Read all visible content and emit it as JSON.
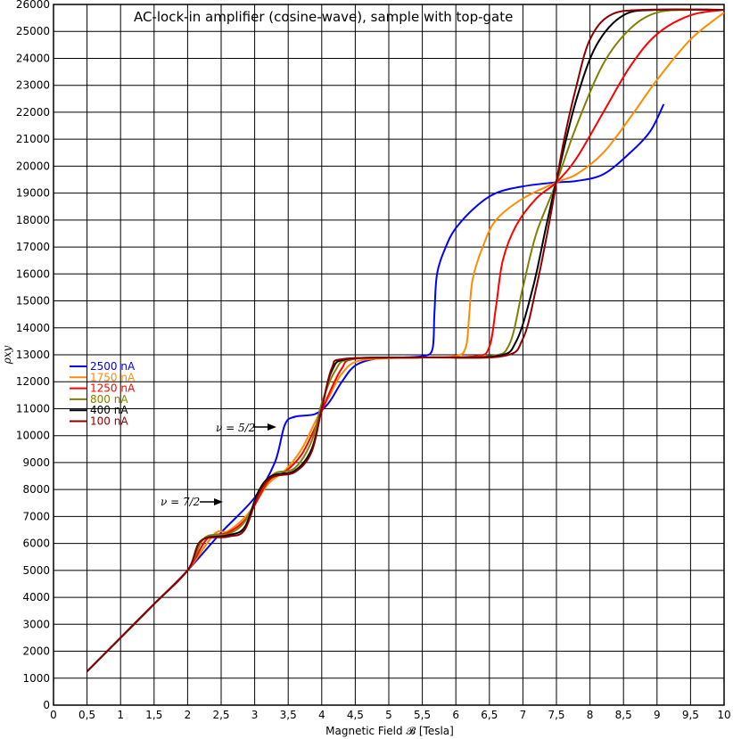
{
  "chart_data": {
    "type": "line",
    "title": "AC-lock-in amplifier (cosine-wave), sample with top-gate",
    "xlabel": "Magnetic Field 𝓑 [Tesla]",
    "ylabel": "ρxy",
    "xlim": [
      0,
      10
    ],
    "ylim": [
      0,
      26000
    ],
    "grid": true,
    "legend_position": "left",
    "x_tick_labels": [
      "0",
      "0,5",
      "1",
      "1,5",
      "2",
      "2,5",
      "3",
      "3,5",
      "4",
      "4,5",
      "5",
      "5,5",
      "6",
      "6,5",
      "7",
      "7,5",
      "8",
      "8,5",
      "9",
      "9,5",
      "10"
    ],
    "y_tick_labels": [
      "0",
      "1000",
      "2000",
      "3000",
      "4000",
      "5000",
      "6000",
      "7000",
      "8000",
      "9000",
      "10000",
      "11000",
      "12000",
      "13000",
      "14000",
      "15000",
      "16000",
      "17000",
      "18000",
      "19000",
      "20000",
      "21000",
      "22000",
      "23000",
      "24000",
      "25000",
      "26000"
    ],
    "annotations": [
      {
        "text": "ν = 5/2",
        "x": 3.1,
        "y": 10400
      },
      {
        "text": "ν = 7/2",
        "x": 2.2,
        "y": 7250
      }
    ],
    "series": [
      {
        "name": "2500 nA",
        "color": "#0000ff",
        "points": [
          [
            0.5,
            1250
          ],
          [
            1.0,
            2500
          ],
          [
            1.5,
            3750
          ],
          [
            2.0,
            5000
          ],
          [
            2.5,
            6400
          ],
          [
            3.0,
            7700
          ],
          [
            3.3,
            9000
          ],
          [
            3.45,
            10400
          ],
          [
            3.6,
            10700
          ],
          [
            3.9,
            10800
          ],
          [
            4.1,
            11200
          ],
          [
            4.3,
            12000
          ],
          [
            4.5,
            12600
          ],
          [
            4.8,
            12850
          ],
          [
            5.2,
            12900
          ],
          [
            5.5,
            12950
          ],
          [
            5.65,
            13200
          ],
          [
            5.68,
            14500
          ],
          [
            5.72,
            16000
          ],
          [
            5.85,
            17000
          ],
          [
            6.0,
            17700
          ],
          [
            6.3,
            18500
          ],
          [
            6.6,
            19000
          ],
          [
            7.0,
            19250
          ],
          [
            7.5,
            19400
          ],
          [
            7.8,
            19450
          ],
          [
            8.2,
            19700
          ],
          [
            8.6,
            20500
          ],
          [
            8.9,
            21300
          ],
          [
            9.1,
            22300
          ]
        ]
      },
      {
        "name": "1750 nA",
        "color": "#ff8c00",
        "points": [
          [
            0.5,
            1250
          ],
          [
            1.0,
            2500
          ],
          [
            1.5,
            3750
          ],
          [
            2.0,
            5000
          ],
          [
            2.4,
            6350
          ],
          [
            2.6,
            6450
          ],
          [
            2.9,
            7100
          ],
          [
            3.2,
            8200
          ],
          [
            3.45,
            8700
          ],
          [
            3.7,
            9500
          ],
          [
            3.9,
            10500
          ],
          [
            4.1,
            11400
          ],
          [
            4.3,
            12300
          ],
          [
            4.6,
            12800
          ],
          [
            5.5,
            12900
          ],
          [
            6.0,
            12950
          ],
          [
            6.15,
            13300
          ],
          [
            6.2,
            14500
          ],
          [
            6.25,
            15800
          ],
          [
            6.4,
            17000
          ],
          [
            6.6,
            18000
          ],
          [
            7.0,
            18800
          ],
          [
            7.5,
            19400
          ],
          [
            7.8,
            19700
          ],
          [
            8.2,
            20500
          ],
          [
            8.6,
            21800
          ],
          [
            9.0,
            23200
          ],
          [
            9.5,
            24700
          ],
          [
            10.0,
            25700
          ]
        ]
      },
      {
        "name": "1250 nA",
        "color": "#ff0000",
        "points": [
          [
            0.5,
            1250
          ],
          [
            1.0,
            2500
          ],
          [
            1.5,
            3750
          ],
          [
            2.0,
            5000
          ],
          [
            2.3,
            6200
          ],
          [
            2.6,
            6400
          ],
          [
            2.9,
            7000
          ],
          [
            3.2,
            8300
          ],
          [
            3.45,
            8650
          ],
          [
            3.7,
            9300
          ],
          [
            3.9,
            10300
          ],
          [
            4.1,
            11500
          ],
          [
            4.3,
            12500
          ],
          [
            4.5,
            12850
          ],
          [
            5.5,
            12900
          ],
          [
            6.3,
            12950
          ],
          [
            6.5,
            13300
          ],
          [
            6.6,
            14800
          ],
          [
            6.7,
            16500
          ],
          [
            6.9,
            17800
          ],
          [
            7.2,
            18800
          ],
          [
            7.5,
            19400
          ],
          [
            7.8,
            20300
          ],
          [
            8.2,
            22000
          ],
          [
            8.6,
            23700
          ],
          [
            9.0,
            24900
          ],
          [
            9.5,
            25600
          ],
          [
            10.0,
            25800
          ]
        ]
      },
      {
        "name": "800 nA",
        "color": "#808000",
        "points": [
          [
            0.5,
            1250
          ],
          [
            1.0,
            2500
          ],
          [
            1.5,
            3750
          ],
          [
            2.0,
            5000
          ],
          [
            2.25,
            6200
          ],
          [
            2.6,
            6350
          ],
          [
            2.85,
            6800
          ],
          [
            3.1,
            8000
          ],
          [
            3.3,
            8600
          ],
          [
            3.6,
            8800
          ],
          [
            3.85,
            9800
          ],
          [
            4.0,
            11200
          ],
          [
            4.2,
            12400
          ],
          [
            4.45,
            12850
          ],
          [
            5.5,
            12900
          ],
          [
            6.5,
            12950
          ],
          [
            6.8,
            13400
          ],
          [
            7.0,
            15500
          ],
          [
            7.2,
            17500
          ],
          [
            7.5,
            19400
          ],
          [
            7.8,
            21500
          ],
          [
            8.2,
            23800
          ],
          [
            8.6,
            25100
          ],
          [
            9.0,
            25700
          ],
          [
            9.5,
            25800
          ],
          [
            10.0,
            25800
          ]
        ]
      },
      {
        "name": "400 nA",
        "color": "#000000",
        "points": [
          [
            0.5,
            1250
          ],
          [
            1.0,
            2500
          ],
          [
            1.5,
            3750
          ],
          [
            2.0,
            5000
          ],
          [
            2.2,
            6100
          ],
          [
            2.6,
            6300
          ],
          [
            2.85,
            6600
          ],
          [
            3.05,
            7900
          ],
          [
            3.25,
            8500
          ],
          [
            3.6,
            8700
          ],
          [
            3.85,
            9500
          ],
          [
            4.0,
            11000
          ],
          [
            4.15,
            12400
          ],
          [
            4.4,
            12850
          ],
          [
            5.5,
            12900
          ],
          [
            6.6,
            12950
          ],
          [
            6.9,
            13500
          ],
          [
            7.15,
            15500
          ],
          [
            7.35,
            17800
          ],
          [
            7.55,
            20000
          ],
          [
            7.8,
            22500
          ],
          [
            8.1,
            24500
          ],
          [
            8.5,
            25600
          ],
          [
            9.0,
            25800
          ],
          [
            10.0,
            25800
          ]
        ]
      },
      {
        "name": "100 nA",
        "color": "#8b0000",
        "points": [
          [
            0.5,
            1250
          ],
          [
            1.0,
            2500
          ],
          [
            1.5,
            3750
          ],
          [
            2.0,
            5000
          ],
          [
            2.2,
            6100
          ],
          [
            2.6,
            6250
          ],
          [
            2.85,
            6500
          ],
          [
            3.05,
            7800
          ],
          [
            3.25,
            8450
          ],
          [
            3.6,
            8650
          ],
          [
            3.85,
            9400
          ],
          [
            4.0,
            11000
          ],
          [
            4.15,
            12500
          ],
          [
            4.35,
            12850
          ],
          [
            5.5,
            12900
          ],
          [
            6.7,
            12950
          ],
          [
            7.0,
            13600
          ],
          [
            7.2,
            15500
          ],
          [
            7.4,
            18000
          ],
          [
            7.6,
            20800
          ],
          [
            7.8,
            23000
          ],
          [
            8.0,
            24700
          ],
          [
            8.3,
            25600
          ],
          [
            8.8,
            25800
          ],
          [
            10.0,
            25800
          ]
        ]
      }
    ]
  }
}
